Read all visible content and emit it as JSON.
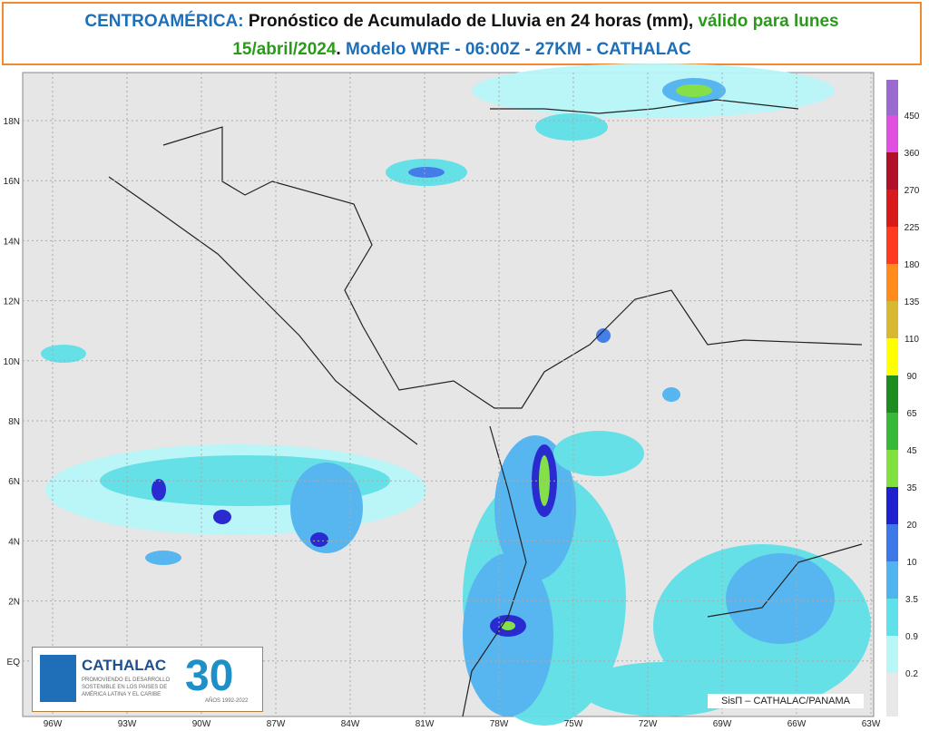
{
  "header": {
    "region": "CENTROAMÉRICA:",
    "title": "Pronóstico de Acumulado de Lluvia en 24 horas (mm),",
    "valid": "válido para lunes",
    "date": "15/abril/2024",
    "period": ".",
    "model": "Modelo WRF - 06:00Z - 27KM - CATHALAC"
  },
  "map": {
    "lat_labels": [
      "18N",
      "16N",
      "14N",
      "12N",
      "10N",
      "8N",
      "6N",
      "4N",
      "2N",
      "EQ"
    ],
    "lon_labels": [
      "96W",
      "93W",
      "90W",
      "87W",
      "84W",
      "81W",
      "78W",
      "75W",
      "72W",
      "69W",
      "66W",
      "63W"
    ]
  },
  "colorbar": {
    "labels": [
      450,
      360,
      270,
      225,
      180,
      135,
      110,
      90,
      65,
      45,
      35,
      20,
      10,
      3.5,
      0.9,
      0.2
    ],
    "colors": [
      "#9a6ad0",
      "#e050e0",
      "#b0102a",
      "#d81a1a",
      "#ff3a20",
      "#ff8c1a",
      "#d8b830",
      "#ffff00",
      "#1e8c1e",
      "#38b838",
      "#80e040",
      "#2020d0",
      "#3c78e8",
      "#50b4f0",
      "#60e0e8",
      "#b8f6f8",
      "#e8e8e8"
    ]
  },
  "logo": {
    "name": "CATHALAC",
    "tagline": "PROMOVIENDO EL DESARROLLO SOSTENIBLE EN LOS PAISES DE AMÉRICA LATINA Y EL CARIBE",
    "anniversary": "30",
    "years": "AÑOS 1992-2022"
  },
  "footer": {
    "credit": "SisΠ – CATHALAC/PANAMA"
  }
}
